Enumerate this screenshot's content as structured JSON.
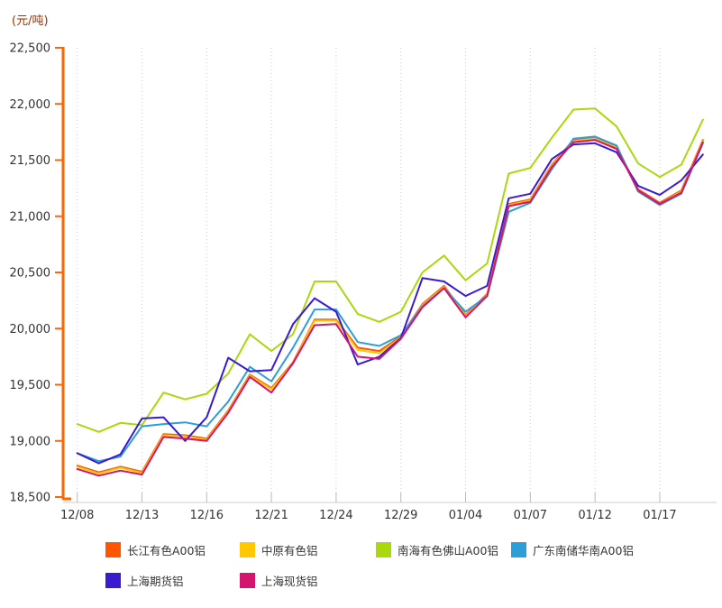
{
  "chart_data": {
    "type": "line",
    "unit_label": "(元/吨)",
    "ylim": [
      18500,
      22500
    ],
    "ytick_step": 500,
    "ytick_labels": [
      "18,500",
      "19,000",
      "19,500",
      "20,000",
      "20,500",
      "21,000",
      "21,500",
      "22,000",
      "22,500"
    ],
    "x_tick_labels_shown": [
      "12/08",
      "12/13",
      "12/16",
      "12/21",
      "12/24",
      "12/29",
      "01/04",
      "01/07",
      "01/12",
      "01/17"
    ],
    "x": [
      "12/08",
      "12/09",
      "12/10",
      "12/13",
      "12/14",
      "12/15",
      "12/16",
      "12/17",
      "12/20",
      "12/21",
      "12/22",
      "12/23",
      "12/24",
      "12/27",
      "12/28",
      "12/29",
      "12/30",
      "12/31",
      "01/04",
      "01/05",
      "01/06",
      "01/07",
      "01/10",
      "01/11",
      "01/12",
      "01/13",
      "01/14",
      "01/17",
      "01/18",
      "01/19"
    ],
    "label_every_n_points": 3,
    "grid": "vertical-dotted-only",
    "legend_position": "bottom",
    "axis_color": "#FF6600",
    "gridline_color": "#CCCCCC",
    "text_color": "#333333",
    "series": [
      {
        "name": "长江有色A00铝",
        "color": "#FF5500",
        "values": [
          18780,
          18720,
          18770,
          18725,
          19060,
          19050,
          19020,
          19270,
          19590,
          19470,
          19700,
          20080,
          20080,
          19830,
          19800,
          19930,
          20220,
          20380,
          20120,
          20310,
          21110,
          21150,
          21460,
          21680,
          21700,
          21620,
          21240,
          21120,
          21230,
          21680
        ]
      },
      {
        "name": "中原有色铝",
        "color": "#FFC800",
        "values": [
          18770,
          18710,
          18760,
          18715,
          19050,
          19040,
          19010,
          19260,
          19580,
          19460,
          19690,
          20070,
          20070,
          19810,
          19780,
          19920,
          20210,
          20370,
          20110,
          20300,
          21100,
          21140,
          21450,
          21670,
          21690,
          21610,
          21230,
          21110,
          21220,
          21670
        ]
      },
      {
        "name": "南海有色佛山A00铝",
        "color": "#A9D90D",
        "values": [
          19150,
          19080,
          19160,
          19140,
          19430,
          19370,
          19420,
          19600,
          19950,
          19800,
          19950,
          20420,
          20420,
          20130,
          20060,
          20150,
          20500,
          20650,
          20430,
          20580,
          21380,
          21430,
          21700,
          21950,
          21960,
          21800,
          21470,
          21350,
          21460,
          21860
        ]
      },
      {
        "name": "广东南储华南A00铝",
        "color": "#2D9FD8",
        "values": [
          18890,
          18820,
          18860,
          19130,
          19150,
          19165,
          19130,
          19350,
          19660,
          19530,
          19830,
          20170,
          20170,
          19880,
          19845,
          19940,
          20200,
          20360,
          20150,
          20290,
          21040,
          21120,
          21420,
          21690,
          21710,
          21630,
          21220,
          21100,
          21200,
          21650
        ]
      },
      {
        "name": "上海期货铝",
        "color": "#3A1BD1",
        "values": [
          18890,
          18800,
          18880,
          19200,
          19210,
          19000,
          19210,
          19740,
          19620,
          19630,
          20040,
          20270,
          20150,
          19680,
          19750,
          19915,
          20450,
          20420,
          20290,
          20380,
          21160,
          21200,
          21510,
          21640,
          21650,
          21570,
          21270,
          21190,
          21320,
          21550
        ]
      },
      {
        "name": "上海现货铝",
        "color": "#D4156E",
        "values": [
          18750,
          18690,
          18735,
          18700,
          19035,
          19020,
          19000,
          19250,
          19570,
          19430,
          19690,
          20030,
          20040,
          19750,
          19730,
          19910,
          20190,
          20360,
          20100,
          20290,
          21090,
          21130,
          21440,
          21660,
          21680,
          21600,
          21230,
          21110,
          21210,
          21660
        ]
      }
    ]
  },
  "legend": {
    "rows": [
      [
        "长江有色A00铝",
        "中原有色铝",
        "南海有色佛山A00铝",
        "广东南储华南A00铝"
      ],
      [
        "上海期货铝",
        "上海现货铝"
      ]
    ]
  }
}
